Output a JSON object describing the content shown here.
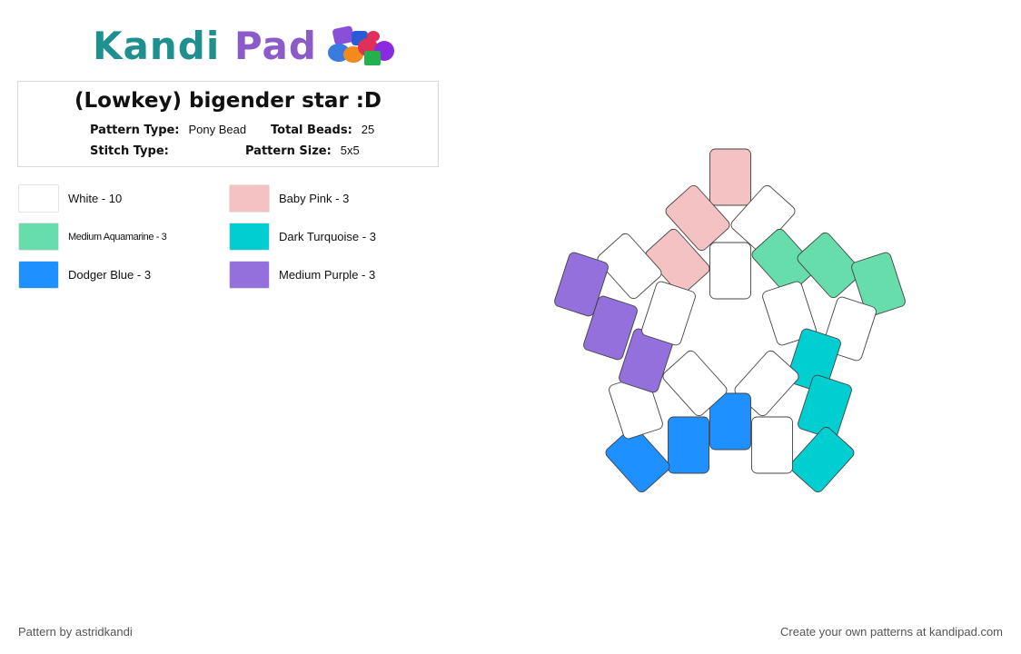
{
  "logo": {
    "word1": "Kandi",
    "word2": "Pad"
  },
  "pattern": {
    "title": "(Lowkey) bigender star :D",
    "type_label": "Pattern Type:",
    "type_value": "Pony Bead",
    "beads_label": "Total Beads:",
    "beads_value": "25",
    "stitch_label": "Stitch Type:",
    "stitch_value": "",
    "size_label": "Pattern Size:",
    "size_value": "5x5"
  },
  "legend": [
    {
      "label": "White - 10",
      "color": "#ffffff"
    },
    {
      "label": "Baby Pink - 3",
      "color": "#f4c2c2"
    },
    {
      "label": "Medium Aquamarine - 3",
      "color": "#66ddaa"
    },
    {
      "label": "Dark Turquoise - 3",
      "color": "#00ced1"
    },
    {
      "label": "Dodger Blue - 3",
      "color": "#1e90ff"
    },
    {
      "label": "Medium Purple - 3",
      "color": "#9370db"
    }
  ],
  "beads": [
    {
      "color": "Baby Pink"
    },
    {
      "color": "White"
    },
    {
      "color": "Baby Pink"
    },
    {
      "color": "Baby Pink"
    },
    {
      "color": "White"
    },
    {
      "color": "White"
    },
    {
      "color": "Medium Aquamarine"
    },
    {
      "color": "Medium Aquamarine"
    },
    {
      "color": "Medium Aquamarine"
    },
    {
      "color": "White"
    },
    {
      "color": "White"
    },
    {
      "color": "Dark Turquoise"
    },
    {
      "color": "Dark Turquoise"
    },
    {
      "color": "Dark Turquoise"
    },
    {
      "color": "White"
    },
    {
      "color": "Dodger Blue"
    },
    {
      "color": "Dodger Blue"
    },
    {
      "color": "Dodger Blue"
    },
    {
      "color": "White"
    },
    {
      "color": "White"
    },
    {
      "color": "White"
    },
    {
      "color": "Medium Purple"
    },
    {
      "color": "Medium Purple"
    },
    {
      "color": "Medium Purple"
    },
    {
      "color": "White"
    }
  ],
  "footer": {
    "left": "Pattern by astridkandi",
    "right": "Create your own patterns at kandipad.com"
  }
}
